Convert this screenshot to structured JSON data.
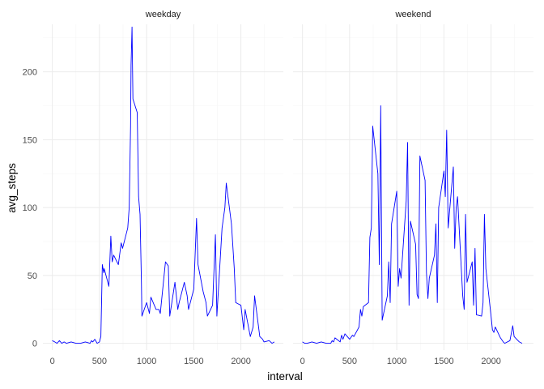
{
  "chart_data": {
    "type": "line",
    "facets": [
      "weekday",
      "weekend"
    ],
    "xlabel": "interval",
    "ylabel": "avg_steps",
    "xlim": [
      -100,
      2450
    ],
    "ylim": [
      -5,
      235
    ],
    "x_ticks": [
      0,
      500,
      1000,
      1500,
      2000
    ],
    "y_ticks": [
      0,
      50,
      100,
      150,
      200
    ],
    "x_tick_labels": [
      "0",
      "500",
      "1000",
      "1500",
      "2000"
    ],
    "y_tick_labels": [
      "0",
      "50",
      "100",
      "150",
      "200"
    ],
    "grid": true,
    "line_color": "#0000ff",
    "series": [
      {
        "facet": "weekday",
        "x": [
          0,
          25,
          50,
          75,
          100,
          125,
          150,
          200,
          250,
          300,
          350,
          400,
          415,
          430,
          450,
          475,
          500,
          515,
          530,
          545,
          550,
          600,
          620,
          635,
          650,
          700,
          730,
          745,
          800,
          815,
          830,
          835,
          845,
          855,
          900,
          915,
          930,
          945,
          950,
          1000,
          1030,
          1045,
          1100,
          1130,
          1145,
          1200,
          1230,
          1245,
          1300,
          1330,
          1345,
          1400,
          1430,
          1445,
          1500,
          1530,
          1545,
          1600,
          1630,
          1645,
          1700,
          1730,
          1745,
          1800,
          1830,
          1845,
          1900,
          1930,
          1945,
          2000,
          2030,
          2045,
          2100,
          2130,
          2145,
          2200,
          2230,
          2245,
          2300,
          2330,
          2355
        ],
        "y": [
          2,
          1,
          0,
          2,
          0,
          1,
          0,
          1,
          0,
          0,
          1,
          0,
          2,
          1,
          3,
          0,
          1,
          5,
          58,
          52,
          55,
          42,
          79,
          60,
          65,
          58,
          74,
          70,
          85,
          100,
          160,
          205,
          233,
          180,
          170,
          108,
          95,
          45,
          20,
          30,
          22,
          34,
          25,
          25,
          22,
          60,
          57,
          20,
          45,
          25,
          30,
          45,
          35,
          25,
          40,
          92,
          58,
          38,
          30,
          20,
          28,
          80,
          20,
          85,
          100,
          118,
          88,
          55,
          30,
          28,
          10,
          25,
          5,
          12,
          35,
          5,
          3,
          1,
          2,
          0,
          1
        ]
      },
      {
        "facet": "weekend",
        "x": [
          0,
          25,
          50,
          100,
          150,
          200,
          250,
          300,
          315,
          330,
          345,
          400,
          415,
          430,
          450,
          500,
          530,
          545,
          600,
          615,
          630,
          645,
          700,
          715,
          730,
          745,
          800,
          815,
          830,
          845,
          900,
          915,
          930,
          945,
          1000,
          1015,
          1030,
          1045,
          1100,
          1115,
          1130,
          1145,
          1200,
          1215,
          1230,
          1245,
          1300,
          1315,
          1330,
          1345,
          1400,
          1415,
          1430,
          1445,
          1500,
          1515,
          1530,
          1545,
          1600,
          1615,
          1630,
          1645,
          1700,
          1715,
          1730,
          1745,
          1800,
          1815,
          1830,
          1845,
          1900,
          1915,
          1930,
          1945,
          2000,
          2015,
          2030,
          2045,
          2100,
          2130,
          2145,
          2200,
          2230,
          2245,
          2300,
          2330
        ],
        "y": [
          1,
          0,
          0,
          1,
          0,
          1,
          0,
          0,
          2,
          1,
          4,
          1,
          6,
          3,
          7,
          3,
          6,
          5,
          12,
          25,
          20,
          27,
          30,
          78,
          85,
          160,
          125,
          58,
          175,
          17,
          35,
          60,
          30,
          88,
          112,
          42,
          55,
          48,
          105,
          148,
          28,
          90,
          73,
          36,
          33,
          138,
          120,
          52,
          33,
          48,
          65,
          88,
          30,
          100,
          127,
          108,
          157,
          85,
          130,
          70,
          100,
          108,
          35,
          25,
          95,
          45,
          60,
          28,
          70,
          21,
          20,
          30,
          95,
          55,
          20,
          10,
          8,
          12,
          4,
          1,
          0,
          2,
          13,
          5,
          1,
          0
        ]
      }
    ]
  }
}
